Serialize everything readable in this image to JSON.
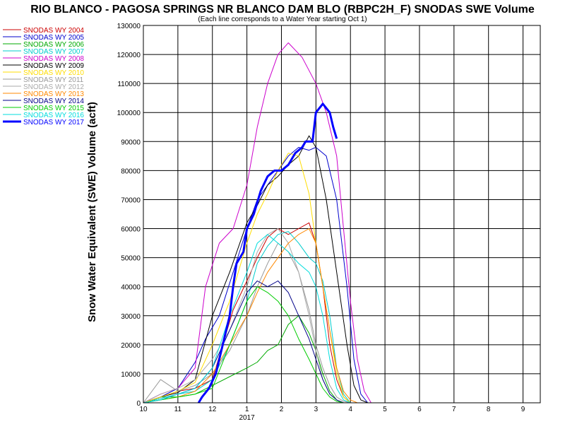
{
  "chart_data": {
    "type": "line",
    "title": "RIO BLANCO - PAGOSA SPRINGS NR  BLANCO DAM BLO (RBPC2H_F) SNODAS SWE Volume",
    "subtitle": "(Each line corresponds to a Water Year starting Oct 1)",
    "xlabel": "",
    "ylabel": "Snow Water Equivalent (SWE) Volume (acft)",
    "x_ticks": [
      "10",
      "11",
      "12",
      "1",
      "2",
      "3",
      "4",
      "5",
      "6",
      "7",
      "8",
      "9"
    ],
    "x_year_label": "2017",
    "ylim": [
      0,
      130000
    ],
    "y_ticks": [
      0,
      10000,
      20000,
      30000,
      40000,
      50000,
      60000,
      70000,
      80000,
      90000,
      100000,
      110000,
      120000,
      130000
    ],
    "grid": true,
    "legend_position": "left",
    "x_unit": "months since Oct 1",
    "series": [
      {
        "name": "SNODAS WY 2004",
        "color": "#cc0000",
        "width": 1,
        "x": [
          0,
          0.5,
          1,
          1.5,
          2,
          2.3,
          2.6,
          3,
          3.3,
          3.6,
          3.9,
          4.2,
          4.5,
          4.8,
          5,
          5.2,
          5.4,
          5.6,
          5.8,
          6,
          6.2
        ],
        "y": [
          0,
          2000,
          4000,
          5000,
          8000,
          20000,
          32000,
          42000,
          50000,
          57000,
          60000,
          58000,
          60000,
          62000,
          55000,
          40000,
          20000,
          8000,
          2000,
          0,
          0
        ]
      },
      {
        "name": "SNODAS WY 2005",
        "color": "#0000cc",
        "width": 1,
        "x": [
          0,
          0.5,
          1,
          1.5,
          1.8,
          2.2,
          2.6,
          3,
          3.3,
          3.6,
          3.9,
          4.2,
          4.5,
          4.8,
          5,
          5.3,
          5.6,
          5.9,
          6.1,
          6.3,
          6.5
        ],
        "y": [
          0,
          2000,
          5000,
          14000,
          22000,
          30000,
          45000,
          60000,
          70000,
          75000,
          80000,
          85000,
          88000,
          87000,
          88000,
          85000,
          70000,
          40000,
          15000,
          3000,
          0
        ]
      },
      {
        "name": "SNODAS WY 2006",
        "color": "#00aa00",
        "width": 1,
        "x": [
          0,
          0.5,
          1,
          1.5,
          2,
          2.5,
          3,
          3.3,
          3.6,
          3.9,
          4.2,
          4.5,
          4.8,
          5,
          5.2,
          5.4,
          5.6,
          5.8
        ],
        "y": [
          0,
          2000,
          2000,
          3000,
          6000,
          9000,
          12000,
          14000,
          18000,
          20000,
          27000,
          30000,
          24000,
          18000,
          10000,
          4000,
          1000,
          0
        ]
      },
      {
        "name": "SNODAS WY 2007",
        "color": "#00cccc",
        "width": 1,
        "x": [
          0,
          0.5,
          1,
          1.5,
          2,
          2.5,
          3,
          3.3,
          3.6,
          3.9,
          4.2,
          4.5,
          4.8,
          5,
          5.2,
          5.4,
          5.6,
          5.8,
          6
        ],
        "y": [
          0,
          1500,
          3000,
          4000,
          8000,
          20000,
          35000,
          48000,
          54000,
          58000,
          59000,
          55000,
          50000,
          48000,
          42000,
          30000,
          12000,
          3000,
          0
        ]
      },
      {
        "name": "SNODAS WY 2008",
        "color": "#cc00cc",
        "width": 1,
        "x": [
          0,
          0.5,
          1,
          1.5,
          1.8,
          2.2,
          2.6,
          3,
          3.3,
          3.6,
          3.9,
          4.2,
          4.6,
          5,
          5.3,
          5.6,
          5.8,
          6,
          6.2,
          6.4,
          6.6
        ],
        "y": [
          0,
          3000,
          5000,
          12000,
          40000,
          55000,
          60000,
          75000,
          95000,
          110000,
          120000,
          124000,
          119000,
          110000,
          100000,
          85000,
          60000,
          35000,
          15000,
          4000,
          0
        ]
      },
      {
        "name": "SNODAS WY 2009",
        "color": "#000000",
        "width": 1,
        "x": [
          0,
          0.5,
          1,
          1.5,
          2,
          2.5,
          3,
          3.3,
          3.6,
          3.9,
          4.2,
          4.5,
          4.8,
          5,
          5.3,
          5.6,
          5.9,
          6.1,
          6.3,
          6.5
        ],
        "y": [
          0,
          2000,
          3500,
          8000,
          30000,
          45000,
          62000,
          68000,
          75000,
          78000,
          82000,
          85000,
          92000,
          88000,
          70000,
          45000,
          20000,
          6000,
          1000,
          0
        ]
      },
      {
        "name": "SNODAS WY 2010",
        "color": "#ffdd00",
        "width": 1,
        "x": [
          0,
          0.5,
          1,
          1.5,
          2,
          2.5,
          3,
          3.3,
          3.6,
          3.9,
          4.2,
          4.5,
          4.8,
          5,
          5.2,
          5.4,
          5.6,
          5.8,
          6
        ],
        "y": [
          0,
          2000,
          4000,
          7000,
          20000,
          35000,
          55000,
          65000,
          72000,
          80000,
          86000,
          85000,
          72000,
          55000,
          40000,
          25000,
          10000,
          2000,
          0
        ]
      },
      {
        "name": "SNODAS WY 2011",
        "color": "#999999",
        "width": 1,
        "x": [
          0,
          0.5,
          1,
          1.5,
          2,
          2.5,
          3,
          3.3,
          3.6,
          3.9,
          4.2,
          4.5,
          4.8,
          5,
          5.2,
          5.4,
          5.6,
          5.8,
          6
        ],
        "y": [
          0,
          8000,
          4000,
          6000,
          10000,
          18000,
          30000,
          40000,
          48000,
          55000,
          52000,
          45000,
          32000,
          20000,
          12000,
          6000,
          2000,
          500,
          0
        ]
      },
      {
        "name": "SNODAS WY 2012",
        "color": "#aaaaaa",
        "width": 1,
        "x": [
          0,
          0.5,
          1,
          1.5,
          2,
          2.5,
          3,
          3.3,
          3.6,
          3.9,
          4.2,
          4.5,
          4.8,
          5,
          5.2,
          5.4,
          5.6,
          5.8,
          6
        ],
        "y": [
          0,
          3000,
          5000,
          8000,
          15000,
          25000,
          40000,
          52000,
          58000,
          60000,
          55000,
          45000,
          30000,
          18000,
          8000,
          3000,
          1000,
          0,
          0
        ]
      },
      {
        "name": "SNODAS WY 2013",
        "color": "#ff8800",
        "width": 1,
        "x": [
          0,
          0.5,
          1,
          1.5,
          2,
          2.5,
          3,
          3.3,
          3.6,
          3.9,
          4.2,
          4.5,
          4.8,
          5,
          5.2,
          5.4,
          5.6,
          5.8,
          6,
          6.2
        ],
        "y": [
          0,
          1000,
          2000,
          4000,
          10000,
          20000,
          30000,
          38000,
          45000,
          50000,
          55000,
          58000,
          60000,
          55000,
          40000,
          25000,
          12000,
          4000,
          1000,
          0
        ]
      },
      {
        "name": "SNODAS WY 2014",
        "color": "#000088",
        "width": 1,
        "x": [
          0,
          0.5,
          1,
          1.5,
          2,
          2.5,
          3,
          3.3,
          3.6,
          3.9,
          4.2,
          4.5,
          4.8,
          5,
          5.2,
          5.4,
          5.6,
          5.8,
          6
        ],
        "y": [
          0,
          1000,
          3000,
          5000,
          12000,
          25000,
          38000,
          42000,
          40000,
          42000,
          38000,
          30000,
          22000,
          15000,
          8000,
          3000,
          1000,
          0,
          0
        ]
      },
      {
        "name": "SNODAS WY 2015",
        "color": "#00cc00",
        "width": 1,
        "x": [
          0,
          0.5,
          1,
          1.5,
          2,
          2.5,
          3,
          3.3,
          3.6,
          3.9,
          4.2,
          4.5,
          4.8,
          5,
          5.2,
          5.4,
          5.6,
          5.8
        ],
        "y": [
          0,
          1000,
          2000,
          3000,
          5000,
          20000,
          35000,
          40000,
          38000,
          35000,
          30000,
          22000,
          15000,
          10000,
          5000,
          2000,
          500,
          0
        ]
      },
      {
        "name": "SNODAS WY 2016",
        "color": "#00dddd",
        "width": 1,
        "x": [
          0,
          0.5,
          1,
          1.5,
          2,
          2.5,
          3,
          3.3,
          3.6,
          3.9,
          4.2,
          4.5,
          4.8,
          5,
          5.2,
          5.4,
          5.6,
          5.8,
          6
        ],
        "y": [
          0,
          1000,
          3000,
          5000,
          12000,
          30000,
          45000,
          55000,
          58000,
          55000,
          52000,
          48000,
          45000,
          40000,
          30000,
          15000,
          5000,
          1000,
          0
        ]
      },
      {
        "name": "SNODAS WY 2017",
        "color": "#0000ff",
        "width": 3,
        "x": [
          1.6,
          1.7,
          1.9,
          2.1,
          2.3,
          2.5,
          2.6,
          2.7,
          2.8,
          2.9,
          3.0,
          3.2,
          3.4,
          3.6,
          3.8,
          4.0,
          4.2,
          4.4,
          4.6,
          4.7,
          4.9,
          5.0,
          5.2,
          5.4,
          5.5,
          5.6
        ],
        "y": [
          0,
          2000,
          5000,
          10000,
          20000,
          30000,
          40000,
          48000,
          50000,
          52000,
          60000,
          65000,
          73000,
          78000,
          80000,
          80000,
          82000,
          86000,
          88000,
          90000,
          90000,
          100000,
          103000,
          100000,
          95000,
          91000
        ]
      }
    ]
  }
}
